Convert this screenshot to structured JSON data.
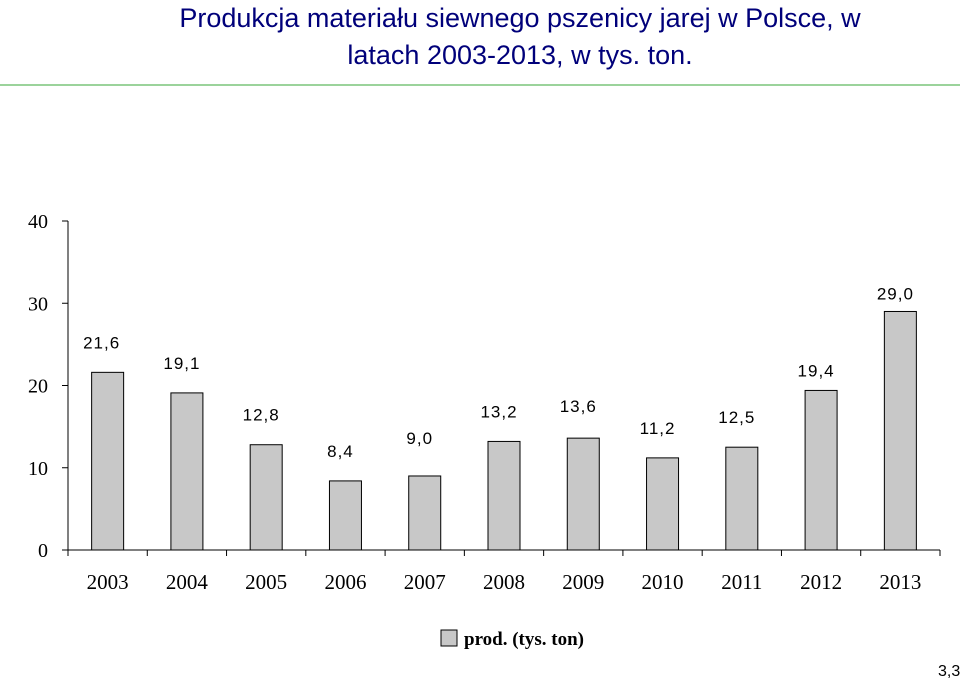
{
  "title_line1": "Produkcja materiału siewnego pszenicy jarej w Polsce, w",
  "title_line2": "latach 2003-2013, w tys. ton.",
  "corner_note": "3,3",
  "colors": {
    "title": "#00007a",
    "bar_fill": "#c8c8c8",
    "bar_stroke": "#000000",
    "rule": "#9bd39b"
  },
  "chart_data": {
    "type": "bar",
    "title": "Produkcja materiału siewnego pszenicy jarej w Polsce, w latach 2003-2013, w tys. ton.",
    "categories": [
      "2003",
      "2004",
      "2005",
      "2006",
      "2007",
      "2008",
      "2009",
      "2010",
      "2011",
      "2012",
      "2013"
    ],
    "series": [
      {
        "name": "prod. (tys. ton)",
        "values": [
          21.6,
          19.1,
          12.8,
          8.4,
          9.0,
          13.2,
          13.6,
          11.2,
          12.5,
          19.4,
          29.0
        ]
      }
    ],
    "data_labels": [
      "21,6",
      "19,1",
      "12,8",
      "8,4",
      "9,0",
      "13,2",
      "13,6",
      "11,2",
      "12,5",
      "19,4",
      "29,0"
    ],
    "ylim": [
      0,
      40
    ],
    "yticks": [
      "0",
      "10",
      "20",
      "30",
      "40"
    ],
    "xlabel": "",
    "ylabel": "",
    "grid": false,
    "legend": {
      "position": "bottom",
      "label": "prod. (tys. ton)"
    }
  }
}
